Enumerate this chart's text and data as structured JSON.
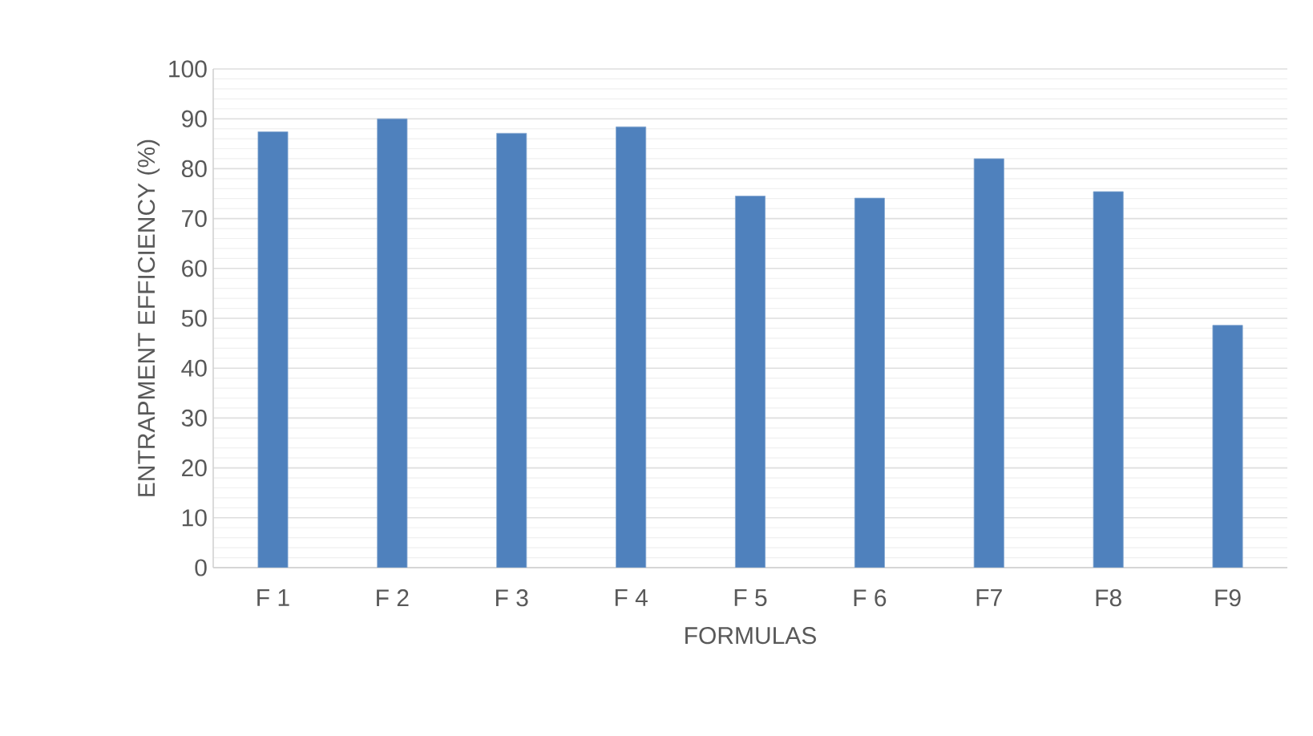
{
  "chart_data": {
    "type": "bar",
    "xlabel": "FORMULAS",
    "ylabel": "ENTRAPMENT EFFICIENCY (%)",
    "categories": [
      "F  1",
      "F  2",
      "F  3",
      "F  4",
      "F  5",
      "F 6",
      "F7",
      "F8",
      "F9"
    ],
    "values": [
      87.4,
      90.0,
      87.1,
      88.4,
      74.5,
      74.1,
      82.0,
      75.4,
      48.6
    ],
    "color": "#4f81bd",
    "ylim": [
      0,
      100
    ],
    "yticks": [
      0,
      10,
      20,
      30,
      40,
      50,
      60,
      70,
      80,
      90,
      100
    ],
    "grid": "y"
  }
}
